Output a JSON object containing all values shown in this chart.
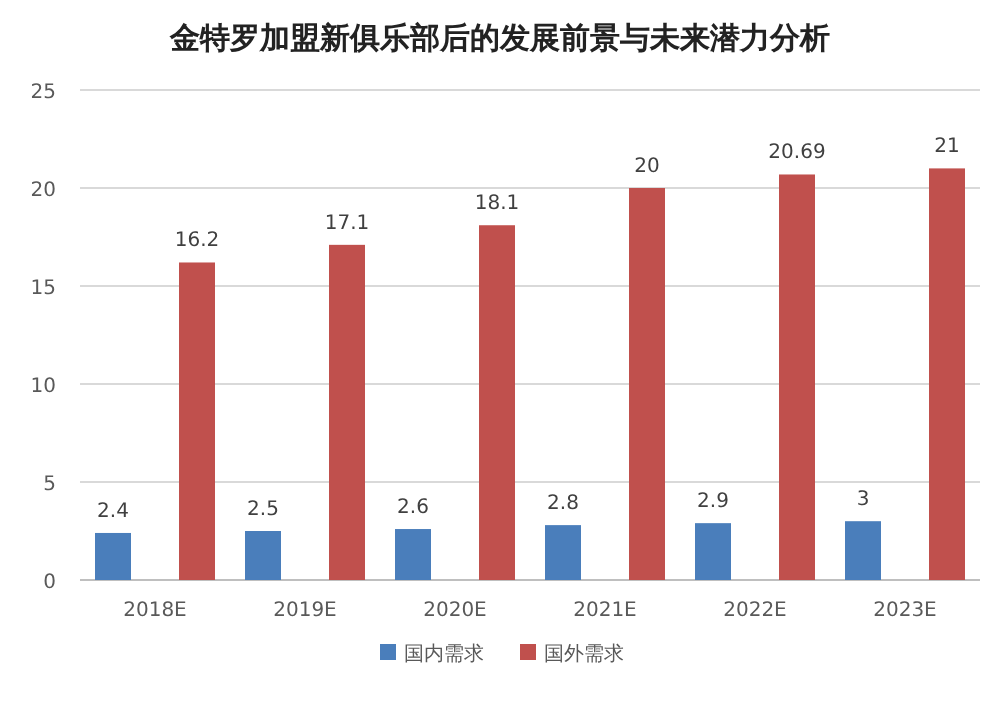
{
  "chart_data": {
    "type": "bar",
    "title": "金特罗加盟新俱乐部后的发展前景与未来潜力分析",
    "categories": [
      "2018E",
      "2019E",
      "2020E",
      "2021E",
      "2022E",
      "2023E"
    ],
    "series": [
      {
        "name": "国内需求",
        "color": "#4a7ebb",
        "values": [
          2.4,
          2.5,
          2.6,
          2.8,
          2.9,
          3
        ]
      },
      {
        "name": "国外需求",
        "color": "#c0504d",
        "values": [
          16.2,
          17.1,
          18.1,
          20,
          20.69,
          21
        ]
      }
    ],
    "ylim": [
      0,
      25
    ],
    "yticks": [
      0,
      5,
      10,
      15,
      20,
      25
    ],
    "grid": "y",
    "legend": "bottom",
    "data_labels": true
  }
}
